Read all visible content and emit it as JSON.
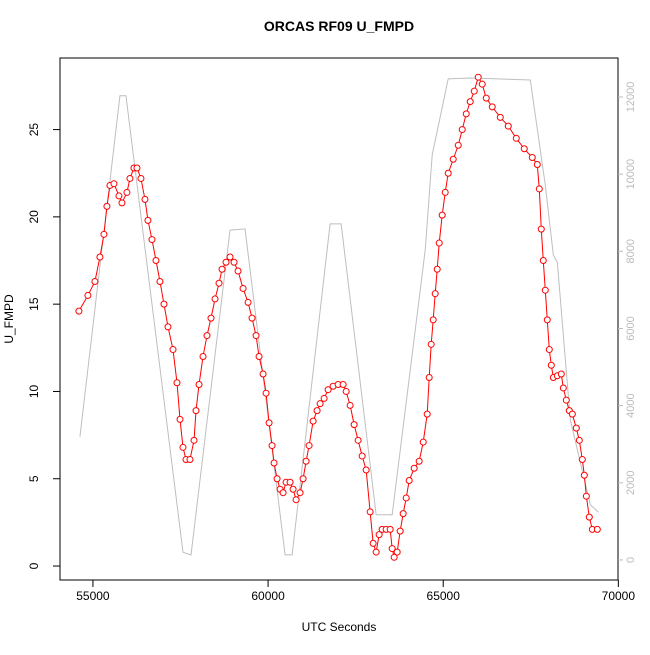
{
  "chart_data": {
    "type": "line",
    "title": "ORCAS RF09 U_FMPD",
    "x_label": "UTC Seconds",
    "y_label": "U_FMPD",
    "xlim": [
      54060,
      69990
    ],
    "xticks": [
      55000,
      60000,
      65000,
      70000
    ],
    "ylim": [
      -0.8,
      29.1
    ],
    "yticks": [
      0,
      5,
      10,
      15,
      20,
      25
    ],
    "y2lim": [
      -520,
      13010
    ],
    "y2ticks": [
      0,
      2000,
      4000,
      6000,
      8000,
      10000,
      12000
    ],
    "series": [
      {
        "color": "#ff0000",
        "marker": "circle",
        "x": [
          54600,
          54857,
          55057,
          55200,
          55314,
          55400,
          55486,
          55600,
          55743,
          55829,
          55971,
          56057,
          56171,
          56257,
          56371,
          56486,
          56571,
          56686,
          56800,
          56914,
          57029,
          57143,
          57286,
          57400,
          57486,
          57571,
          57657,
          57771,
          57886,
          57943,
          58029,
          58143,
          58257,
          58371,
          58486,
          58600,
          58686,
          58800,
          58914,
          59029,
          59143,
          59286,
          59429,
          59543,
          59657,
          59743,
          59857,
          59943,
          60029,
          60114,
          60171,
          60257,
          60343,
          60429,
          60514,
          60629,
          60714,
          60800,
          60914,
          61000,
          61086,
          61171,
          61286,
          61400,
          61486,
          61600,
          61714,
          61857,
          62000,
          62143,
          62229,
          62343,
          62457,
          62571,
          62686,
          62800,
          62914,
          63000,
          63086,
          63171,
          63257,
          63371,
          63486,
          63543,
          63600,
          63686,
          63771,
          63857,
          63943,
          64029,
          64171,
          64314,
          64429,
          64543,
          64600,
          64657,
          64714,
          64771,
          64829,
          64886,
          64971,
          65057,
          65143,
          65286,
          65429,
          65543,
          65657,
          65771,
          65886,
          66000,
          66114,
          66229,
          66400,
          66629,
          66857,
          67086,
          67314,
          67543,
          67686,
          67743,
          67800,
          67857,
          67914,
          67971,
          68029,
          68086,
          68143,
          68257,
          68371,
          68429,
          68514,
          68600,
          68686,
          68800,
          68886,
          68971,
          69029,
          69086,
          69171,
          69257,
          69400
        ],
        "values": [
          14.6,
          15.5,
          16.3,
          17.7,
          19.0,
          20.6,
          21.8,
          21.9,
          21.2,
          20.8,
          21.4,
          22.2,
          22.8,
          22.8,
          22.2,
          21.0,
          19.8,
          18.7,
          17.5,
          16.3,
          15.0,
          13.7,
          12.4,
          10.5,
          8.4,
          6.8,
          6.1,
          6.1,
          7.2,
          8.9,
          10.4,
          12.0,
          13.2,
          14.2,
          15.3,
          16.2,
          17.0,
          17.4,
          17.7,
          17.4,
          16.9,
          15.9,
          15.1,
          14.2,
          13.2,
          12.0,
          11.0,
          9.9,
          8.2,
          6.9,
          5.9,
          5.0,
          4.4,
          4.2,
          4.8,
          4.8,
          4.4,
          3.8,
          4.2,
          5.0,
          6.0,
          6.9,
          8.3,
          8.9,
          9.3,
          9.6,
          10.1,
          10.3,
          10.4,
          10.4,
          10.0,
          9.2,
          8.1,
          7.2,
          6.3,
          5.5,
          3.1,
          1.3,
          0.8,
          1.8,
          2.1,
          2.1,
          2.1,
          1.0,
          0.5,
          0.8,
          2.0,
          3.0,
          3.9,
          4.9,
          5.6,
          6.0,
          7.1,
          8.7,
          10.8,
          12.7,
          14.1,
          15.6,
          17.0,
          18.5,
          20.1,
          21.4,
          22.5,
          23.3,
          24.1,
          25.0,
          25.9,
          26.6,
          27.2,
          28.0,
          27.6,
          26.8,
          26.3,
          25.7,
          25.2,
          24.5,
          23.9,
          23.4,
          23.0,
          21.6,
          19.3,
          17.5,
          15.8,
          14.1,
          12.4,
          11.5,
          10.8,
          10.9,
          11.0,
          10.2,
          9.5,
          8.9,
          8.7,
          7.9,
          7.2,
          6.1,
          5.2,
          4.0,
          2.8,
          2.1,
          2.1
        ]
      },
      {
        "color": "#bebebe",
        "axis": "y2",
        "x": [
          54629,
          55771,
          55943,
          57571,
          57800,
          58914,
          59343,
          60486,
          60686,
          61771,
          62086,
          63086,
          63543,
          64486,
          64686,
          65143,
          65771,
          67486,
          67914,
          68143,
          68257,
          68629,
          69200,
          69429
        ],
        "values": [
          3190,
          12030,
          12030,
          200,
          130,
          8550,
          8580,
          130,
          130,
          8710,
          8710,
          1170,
          1170,
          8030,
          10500,
          12470,
          12490,
          12440,
          9720,
          7910,
          7720,
          3630,
          1430,
          1240
        ]
      }
    ]
  }
}
